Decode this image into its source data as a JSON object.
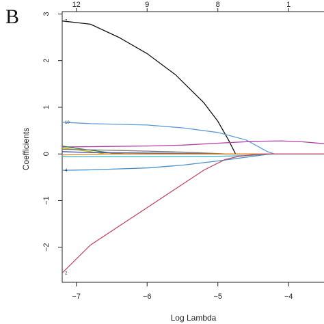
{
  "panel_letter": "B",
  "chart_data": {
    "type": "line",
    "title": "",
    "xlabel": "Log Lambda",
    "ylabel": "Coefficients",
    "xlim": [
      -7.2,
      -3.5
    ],
    "ylim": [
      -2.75,
      3.05
    ],
    "x_ticks": [
      -7,
      -6,
      -5,
      -4
    ],
    "y_ticks": [
      -2,
      -1,
      0,
      1,
      2,
      3
    ],
    "top_axis": {
      "label": "",
      "ticks": [
        {
          "x": -7.0,
          "label": "12"
        },
        {
          "x": -6.0,
          "label": "9"
        },
        {
          "x": -5.0,
          "label": "8"
        },
        {
          "x": -4.0,
          "label": "1"
        }
      ]
    },
    "grid": false,
    "legend": "none",
    "series": [
      {
        "label": "7",
        "color": "#111111",
        "x": [
          -7.2,
          -6.8,
          -6.4,
          -6.0,
          -5.6,
          -5.2,
          -5.0,
          -4.85,
          -4.75,
          -4.7,
          -3.5
        ],
        "y": [
          2.85,
          2.78,
          2.5,
          2.15,
          1.7,
          1.1,
          0.7,
          0.3,
          0.0,
          0.0,
          0.0
        ]
      },
      {
        "label": "10",
        "color": "#5b9bd5",
        "x": [
          -7.2,
          -6.8,
          -6.0,
          -5.5,
          -5.0,
          -4.6,
          -4.3,
          -4.2,
          -3.5
        ],
        "y": [
          0.68,
          0.65,
          0.62,
          0.56,
          0.46,
          0.3,
          0.05,
          0.0,
          0.0
        ]
      },
      {
        "label": "",
        "color": "#b040a8",
        "x": [
          -7.2,
          -6.6,
          -6.0,
          -5.5,
          -5.0,
          -4.5,
          -4.1,
          -3.8,
          -3.5
        ],
        "y": [
          0.15,
          0.16,
          0.17,
          0.19,
          0.23,
          0.27,
          0.28,
          0.26,
          0.22
        ]
      },
      {
        "label": "",
        "color": "#2e7d32",
        "x": [
          -7.2,
          -7.0,
          -6.7,
          -6.5,
          -6.3,
          -3.5
        ],
        "y": [
          0.17,
          0.12,
          0.06,
          0.02,
          0.0,
          0.0
        ]
      },
      {
        "label": "",
        "color": "#c8b400",
        "x": [
          -7.2,
          -7.0,
          -6.8,
          -6.6,
          -3.5
        ],
        "y": [
          0.13,
          0.09,
          0.05,
          0.0,
          0.0
        ]
      },
      {
        "label": "",
        "color": "#777777",
        "x": [
          -7.2,
          -6.5,
          -6.0,
          -5.5,
          -5.0,
          -4.9,
          -3.5
        ],
        "y": [
          0.1,
          0.08,
          0.06,
          0.04,
          0.01,
          0.0,
          0.0
        ]
      },
      {
        "label": "",
        "color": "#3f51b5",
        "x": [
          -7.2,
          -6.8,
          -6.0,
          -5.2,
          -4.9,
          -3.5
        ],
        "y": [
          0.05,
          0.03,
          0.02,
          0.01,
          0.0,
          0.0
        ]
      },
      {
        "label": "",
        "color": "#40b8c8",
        "x": [
          -7.2,
          -6.0,
          -5.0,
          -4.5,
          -4.3,
          -3.5
        ],
        "y": [
          -0.06,
          -0.06,
          -0.05,
          -0.03,
          0.0,
          0.0
        ]
      },
      {
        "label": "",
        "color": "#e08020",
        "x": [
          -7.2,
          -6.8,
          -6.5,
          -3.5
        ],
        "y": [
          -0.02,
          -0.01,
          0.0,
          0.0
        ]
      },
      {
        "label": "4",
        "color": "#4a90c8",
        "x": [
          -7.2,
          -6.8,
          -6.0,
          -5.5,
          -5.0,
          -4.6,
          -4.3,
          -4.2,
          -3.5
        ],
        "y": [
          -0.35,
          -0.34,
          -0.3,
          -0.24,
          -0.15,
          -0.07,
          -0.01,
          0.0,
          0.0
        ]
      },
      {
        "label": "2",
        "color": "#c0506a",
        "x": [
          -7.2,
          -6.8,
          -6.4,
          -6.0,
          -5.6,
          -5.2,
          -4.9,
          -4.7,
          -4.45,
          -4.3,
          -3.5
        ],
        "y": [
          -2.55,
          -1.95,
          -1.55,
          -1.15,
          -0.75,
          -0.35,
          -0.12,
          -0.05,
          -0.01,
          0.0,
          0.0
        ]
      }
    ]
  }
}
